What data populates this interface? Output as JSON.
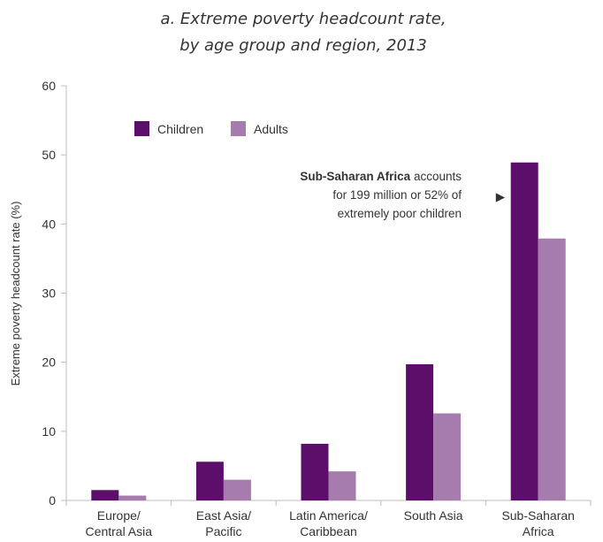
{
  "chart_data": {
    "type": "bar",
    "title_lines": [
      "a. Extreme poverty headcount rate,",
      "by age group and region, 2013"
    ],
    "ylabel": "Extreme poverty headcount rate (%)",
    "ylim": [
      0,
      60
    ],
    "yticks": [
      0,
      10,
      20,
      30,
      40,
      50,
      60
    ],
    "grid": false,
    "legend_position": "top-left",
    "categories": [
      [
        "Europe/",
        "Central Asia"
      ],
      [
        "East Asia/",
        "Pacific"
      ],
      [
        "Latin America/",
        "Caribbean"
      ],
      [
        "South Asia"
      ],
      [
        "Sub-Saharan",
        "Africa"
      ]
    ],
    "series": [
      {
        "name": "Children",
        "color": "#5c0e6b",
        "values": [
          1.5,
          5.6,
          8.2,
          19.7,
          48.9
        ]
      },
      {
        "name": "Adults",
        "color": "#a57cad",
        "values": [
          0.7,
          3.0,
          4.2,
          12.6,
          37.9
        ]
      }
    ],
    "annotation": {
      "bold": "Sub-Saharan Africa",
      "line1_rest": " accounts",
      "line2": "for 199 million or 52% of",
      "line3": "extremely poor children",
      "arrow": "▶"
    }
  }
}
